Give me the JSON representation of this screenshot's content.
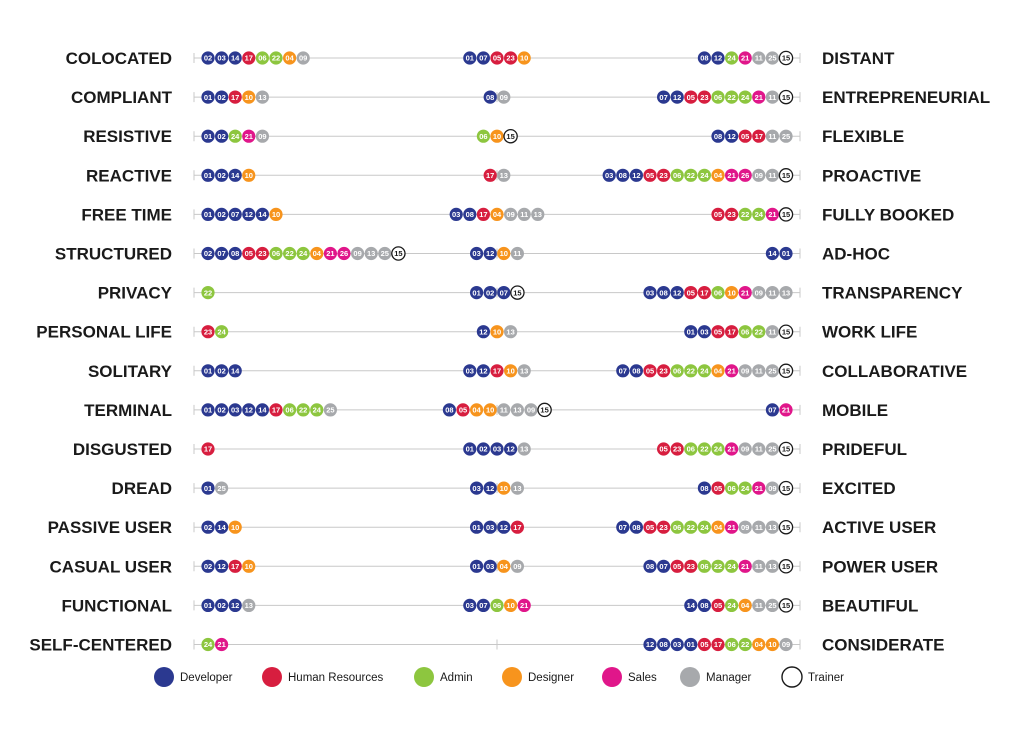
{
  "chart_data": {
    "type": "scatter",
    "roles": [
      {
        "key": "D",
        "name": "Developer",
        "color": "#2b3990"
      },
      {
        "key": "H",
        "name": "Human Resources",
        "color": "#d71e3f"
      },
      {
        "key": "A",
        "name": "Admin",
        "color": "#8dc63f"
      },
      {
        "key": "G",
        "name": "Designer",
        "color": "#f7941d"
      },
      {
        "key": "S",
        "name": "Sales",
        "color": "#e0168a"
      },
      {
        "key": "M",
        "name": "Manager",
        "color": "#a7a9ac"
      },
      {
        "key": "T",
        "name": "Trainer",
        "color": "#ffffff"
      }
    ],
    "rows": [
      {
        "left": "COLOCATED",
        "right": "DISTANT",
        "groups": [
          {
            "pos": "left",
            "items": [
              "02D",
              "03D",
              "14D",
              "17H",
              "06A",
              "22A",
              "04G",
              "09M"
            ]
          },
          {
            "pos": "middle",
            "items": [
              "01D",
              "07D",
              "05H",
              "23H",
              "10G"
            ]
          },
          {
            "pos": "right",
            "items": [
              "08D",
              "12D",
              "24A",
              "21S",
              "11M",
              "25M",
              "15T"
            ]
          }
        ]
      },
      {
        "left": "COMPLIANT",
        "right": "ENTREPRENEURIAL",
        "groups": [
          {
            "pos": "left",
            "items": [
              "01D",
              "02D",
              "17H",
              "10G",
              "13M"
            ]
          },
          {
            "pos": "middle",
            "items": [
              "08D",
              "09M"
            ]
          },
          {
            "pos": "right",
            "items": [
              "07D",
              "12D",
              "05H",
              "23H",
              "06A",
              "22A",
              "24A",
              "21S",
              "11M",
              "15T"
            ]
          }
        ]
      },
      {
        "left": "RESISTIVE",
        "right": "FLEXIBLE",
        "groups": [
          {
            "pos": "left",
            "items": [
              "01D",
              "02D",
              "24A",
              "21S",
              "09M"
            ]
          },
          {
            "pos": "middle",
            "items": [
              "06A",
              "10G",
              "15T"
            ]
          },
          {
            "pos": "right",
            "items": [
              "08D",
              "12D",
              "05H",
              "17H",
              "11M",
              "25M"
            ]
          }
        ]
      },
      {
        "left": "REACTIVE",
        "right": "PROACTIVE",
        "groups": [
          {
            "pos": "left",
            "items": [
              "01D",
              "02D",
              "14D",
              "10G"
            ]
          },
          {
            "pos": "middle",
            "items": [
              "17H",
              "13M"
            ]
          },
          {
            "pos": "right",
            "items": [
              "03D",
              "08D",
              "12D",
              "05H",
              "23H",
              "06A",
              "22A",
              "24A",
              "04G",
              "21S",
              "26S",
              "09M",
              "11M",
              "15T"
            ]
          }
        ]
      },
      {
        "left": "FREE TIME",
        "right": "FULLY BOOKED",
        "groups": [
          {
            "pos": "left",
            "items": [
              "01D",
              "02D",
              "07D",
              "12D",
              "14D",
              "10G"
            ]
          },
          {
            "pos": "middle",
            "items": [
              "03D",
              "08D",
              "17H",
              "04G",
              "09M",
              "11M",
              "13M"
            ]
          },
          {
            "pos": "right",
            "items": [
              "05H",
              "23H",
              "22A",
              "24A",
              "21S",
              "15T"
            ]
          }
        ]
      },
      {
        "left": "STRUCTURED",
        "right": "AD-HOC",
        "groups": [
          {
            "pos": "left",
            "items": [
              "02D",
              "07D",
              "08D",
              "05H",
              "23H",
              "06A",
              "22A",
              "24A",
              "04G",
              "21S",
              "26S",
              "09M",
              "13M",
              "25M",
              "15T"
            ]
          },
          {
            "pos": "middle",
            "items": [
              "03D",
              "12D",
              "10G",
              "11M"
            ]
          },
          {
            "pos": "right",
            "items": [
              "14D",
              "01D"
            ]
          }
        ]
      },
      {
        "left": "PRIVACY",
        "right": "TRANSPARENCY",
        "groups": [
          {
            "pos": "left",
            "items": [
              "22A"
            ]
          },
          {
            "pos": "middle",
            "items": [
              "01D",
              "02D",
              "07D",
              "15T"
            ]
          },
          {
            "pos": "right",
            "items": [
              "03D",
              "08D",
              "12D",
              "05H",
              "17H",
              "06A",
              "10G",
              "21S",
              "09M",
              "11M",
              "13M"
            ]
          }
        ]
      },
      {
        "left": "PERSONAL LIFE",
        "right": "WORK LIFE",
        "groups": [
          {
            "pos": "left",
            "items": [
              "23H",
              "24A"
            ]
          },
          {
            "pos": "middle",
            "items": [
              "12D",
              "10G",
              "13M"
            ]
          },
          {
            "pos": "right",
            "items": [
              "01D",
              "03D",
              "05H",
              "17H",
              "06A",
              "22A",
              "11M",
              "15T"
            ]
          }
        ]
      },
      {
        "left": "SOLITARY",
        "right": "COLLABORATIVE",
        "groups": [
          {
            "pos": "left",
            "items": [
              "01D",
              "02D",
              "14D"
            ]
          },
          {
            "pos": "middle",
            "items": [
              "03D",
              "12D",
              "17H",
              "10G",
              "13M"
            ]
          },
          {
            "pos": "right",
            "items": [
              "07D",
              "08D",
              "05H",
              "23H",
              "06A",
              "22A",
              "24A",
              "04G",
              "21S",
              "09M",
              "11M",
              "25M",
              "15T"
            ]
          }
        ]
      },
      {
        "left": "TERMINAL",
        "right": "MOBILE",
        "groups": [
          {
            "pos": "left",
            "items": [
              "01D",
              "02D",
              "03D",
              "12D",
              "14D",
              "17H",
              "06A",
              "22A",
              "24A",
              "25M"
            ]
          },
          {
            "pos": "middle",
            "items": [
              "08D",
              "05H",
              "04G",
              "10G",
              "11M",
              "13M",
              "09M",
              "15T"
            ]
          },
          {
            "pos": "right",
            "items": [
              "07D",
              "21S"
            ]
          }
        ]
      },
      {
        "left": "DISGUSTED",
        "right": "PRIDEFUL",
        "groups": [
          {
            "pos": "left",
            "items": [
              "17H"
            ]
          },
          {
            "pos": "middle",
            "items": [
              "01D",
              "02D",
              "03D",
              "12D",
              "13M"
            ]
          },
          {
            "pos": "right",
            "items": [
              "05H",
              "23H",
              "06A",
              "22A",
              "24A",
              "21S",
              "09M",
              "11M",
              "25M",
              "15T"
            ]
          }
        ]
      },
      {
        "left": "DREAD",
        "right": "EXCITED",
        "groups": [
          {
            "pos": "left",
            "items": [
              "01D",
              "25M"
            ]
          },
          {
            "pos": "middle",
            "items": [
              "03D",
              "12D",
              "10G",
              "13M"
            ]
          },
          {
            "pos": "right",
            "items": [
              "08D",
              "05H",
              "06A",
              "24A",
              "21S",
              "09M",
              "15T"
            ]
          }
        ]
      },
      {
        "left": "PASSIVE USER",
        "right": "ACTIVE USER",
        "groups": [
          {
            "pos": "left",
            "items": [
              "02D",
              "14D",
              "10G"
            ]
          },
          {
            "pos": "middle",
            "items": [
              "01D",
              "03D",
              "12D",
              "17H"
            ]
          },
          {
            "pos": "right",
            "items": [
              "07D",
              "08D",
              "05H",
              "23H",
              "06A",
              "22A",
              "24A",
              "04G",
              "21S",
              "09M",
              "11M",
              "13M",
              "15T"
            ]
          }
        ]
      },
      {
        "left": "CASUAL USER",
        "right": "POWER USER",
        "groups": [
          {
            "pos": "left",
            "items": [
              "02D",
              "12D",
              "17H",
              "10G"
            ]
          },
          {
            "pos": "middle",
            "items": [
              "01D",
              "03D",
              "04G",
              "09M"
            ]
          },
          {
            "pos": "right",
            "items": [
              "08D",
              "07D",
              "05H",
              "23H",
              "06A",
              "22A",
              "24A",
              "21S",
              "11M",
              "13M",
              "15T"
            ]
          }
        ]
      },
      {
        "left": "FUNCTIONAL",
        "right": "BEAUTIFUL",
        "groups": [
          {
            "pos": "left",
            "items": [
              "01D",
              "02D",
              "12D",
              "13M"
            ]
          },
          {
            "pos": "middle",
            "items": [
              "03D",
              "07D",
              "06A",
              "10G",
              "21S"
            ]
          },
          {
            "pos": "right",
            "items": [
              "14D",
              "08D",
              "05H",
              "24A",
              "04G",
              "11M",
              "25M",
              "15T"
            ]
          }
        ]
      },
      {
        "left": "SELF-CENTERED",
        "right": "CONSIDERATE",
        "groups": [
          {
            "pos": "left",
            "items": [
              "24A",
              "21S"
            ]
          },
          {
            "pos": "right",
            "items": [
              "12D",
              "08D",
              "03D",
              "01D",
              "05H",
              "17H",
              "06A",
              "22A",
              "04G",
              "10G",
              "09M"
            ]
          }
        ]
      }
    ]
  }
}
